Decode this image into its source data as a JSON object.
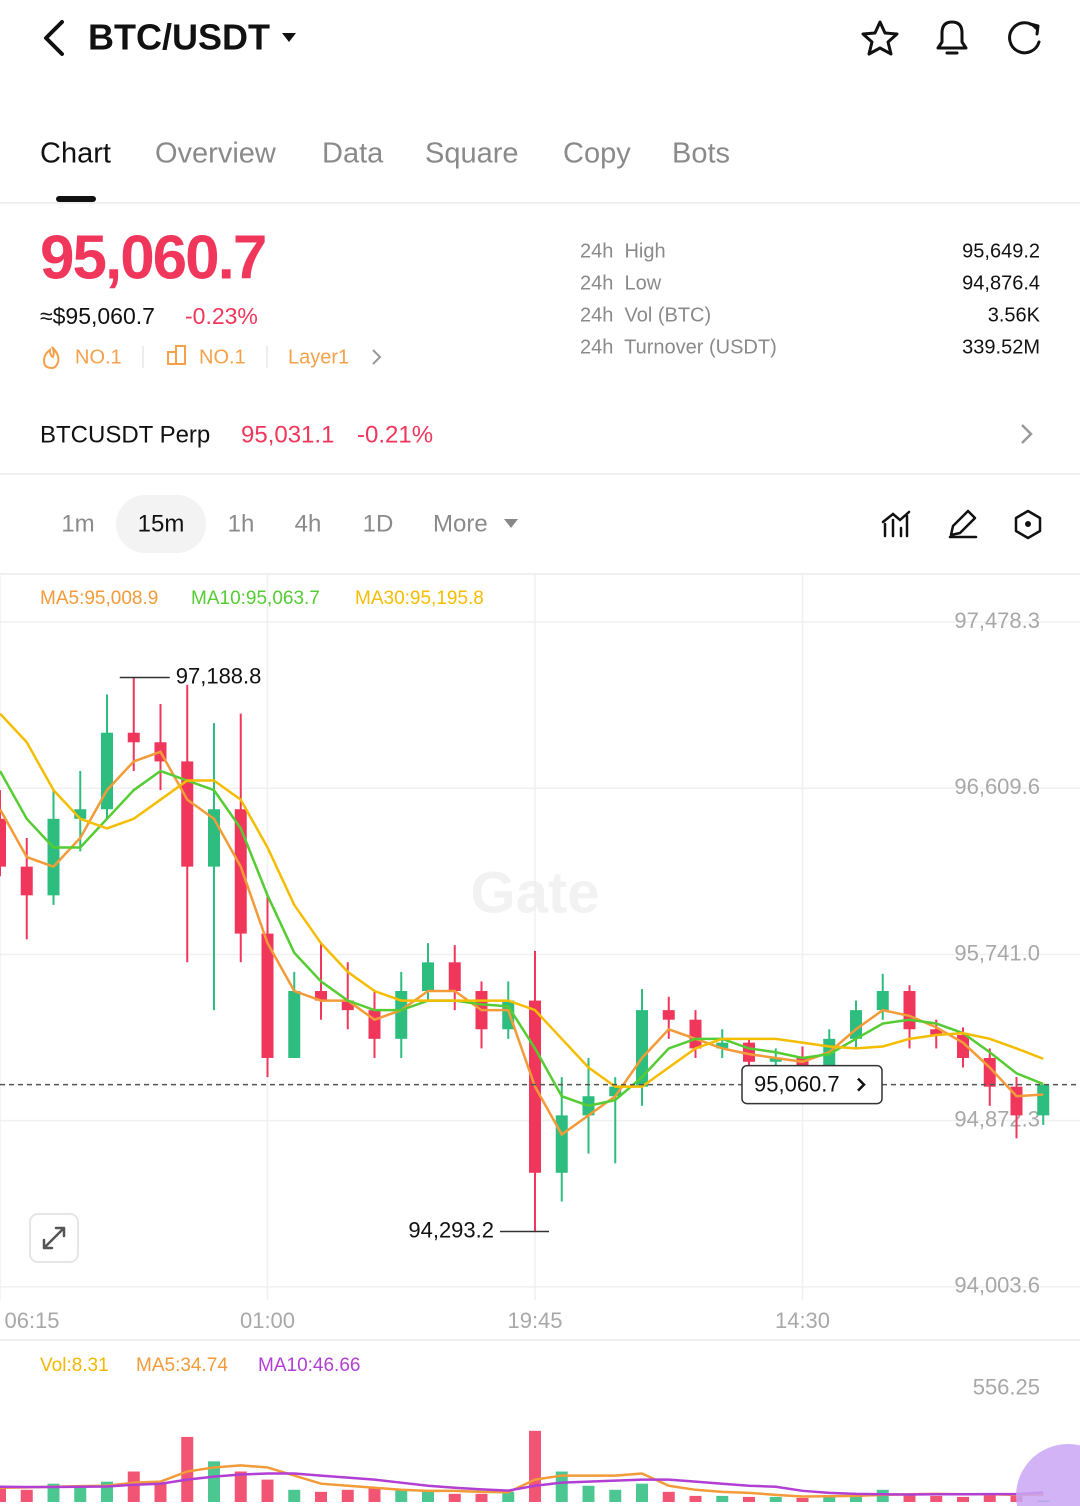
{
  "header": {
    "pair": "BTC/USDT"
  },
  "tabs": [
    "Chart",
    "Overview",
    "Data",
    "Square",
    "Copy",
    "Bots"
  ],
  "ticker": {
    "price": "95,060.7",
    "usd": "≈$95,060.7",
    "change": "-0.23%",
    "tags": [
      "NO.1",
      "NO.1",
      "Layer1"
    ],
    "stats": [
      {
        "label": "24h  High",
        "value": "95,649.2"
      },
      {
        "label": "24h  Low",
        "value": "94,876.4"
      },
      {
        "label": "24h  Vol (BTC)",
        "value": "3.56K"
      },
      {
        "label": "24h  Turnover (USDT)",
        "value": "339.52M"
      }
    ]
  },
  "perp": {
    "name": "BTCUSDT Perp",
    "price": "95,031.1",
    "change": "-0.21%"
  },
  "intervals": [
    "1m",
    "15m",
    "1h",
    "4h",
    "1D",
    "More"
  ],
  "watermark": "Gate",
  "chart_data": [
    {
      "type": "candlestick",
      "categories": [
        "06:15",
        null,
        null,
        null,
        null,
        null,
        null,
        null,
        null,
        null,
        "01:00",
        null,
        null,
        null,
        null,
        null,
        null,
        null,
        null,
        null,
        "19:45",
        null,
        null,
        null,
        null,
        null,
        null,
        null,
        null,
        null,
        "14:30",
        null,
        null,
        null,
        null,
        null,
        null,
        null,
        null,
        null
      ],
      "open": [
        96450,
        96200,
        96050,
        96450,
        96500,
        96900,
        96850,
        96750,
        96200,
        96500,
        95850,
        95200,
        95550,
        95500,
        95450,
        95300,
        95550,
        95700,
        95550,
        95350,
        95500,
        94600,
        94900,
        95000,
        95050,
        95450,
        95400,
        95250,
        95280,
        95180,
        95200,
        95150,
        95300,
        95450,
        95550,
        95350,
        95320,
        95200,
        95050,
        94900
      ],
      "high": [
        96600,
        96350,
        96600,
        96700,
        97100,
        97188.8,
        97050,
        97150,
        96950,
        97000,
        96050,
        95650,
        95800,
        95700,
        95550,
        95650,
        95800,
        95790,
        95600,
        95600,
        95760,
        95100,
        95200,
        95100,
        95560,
        95520,
        95450,
        95350,
        95300,
        95250,
        95260,
        95350,
        95500,
        95640,
        95580,
        95400,
        95360,
        95250,
        95100,
        95060.7
      ],
      "low": [
        96150,
        95820,
        96000,
        96280,
        96450,
        96700,
        96600,
        95700,
        95450,
        95700,
        95100,
        95200,
        95400,
        95350,
        95200,
        95200,
        95500,
        95450,
        95250,
        95300,
        94293.2,
        94450,
        94700,
        94650,
        94950,
        95300,
        95200,
        95200,
        95120,
        95080,
        95100,
        95120,
        95250,
        95400,
        95250,
        95250,
        95150,
        94950,
        94780,
        94850
      ],
      "close": [
        96200,
        96050,
        96450,
        96500,
        96900,
        96850,
        96750,
        96200,
        96500,
        95850,
        95200,
        95550,
        95500,
        95450,
        95300,
        95550,
        95700,
        95550,
        95350,
        95500,
        94600,
        94900,
        95000,
        95050,
        95450,
        95400,
        95250,
        95280,
        95180,
        95200,
        95150,
        95300,
        95450,
        95550,
        95350,
        95320,
        95200,
        95050,
        94900,
        95060.7
      ],
      "up_color": "#2dbd7f",
      "down_color": "#f0365b",
      "series": [
        {
          "name": "MA5:95,008.9",
          "color": "#f29b38",
          "values": [
            96500,
            96250,
            96200,
            96350,
            96600,
            96750,
            96800,
            96550,
            96450,
            96200,
            95800,
            95550,
            95500,
            95500,
            95400,
            95450,
            95550,
            95550,
            95450,
            95450,
            95050,
            94800,
            94900,
            95000,
            95200,
            95350,
            95300,
            95250,
            95220,
            95200,
            95180,
            95230,
            95350,
            95450,
            95420,
            95360,
            95280,
            95150,
            95000,
            95008.9
          ]
        },
        {
          "name": "MA10:95,063.7",
          "color": "#55cc33",
          "values": [
            96700,
            96450,
            96300,
            96300,
            96450,
            96600,
            96700,
            96650,
            96600,
            96400,
            96050,
            95750,
            95600,
            95500,
            95450,
            95450,
            95500,
            95500,
            95480,
            95470,
            95250,
            95000,
            94950,
            94980,
            95100,
            95250,
            95300,
            95300,
            95250,
            95230,
            95200,
            95220,
            95300,
            95380,
            95400,
            95380,
            95330,
            95230,
            95120,
            95063.7
          ]
        },
        {
          "name": "MA30:95,195.8",
          "color": "#f5bd00",
          "values": [
            97000,
            96850,
            96600,
            96450,
            96400,
            96450,
            96550,
            96650,
            96650,
            96550,
            96300,
            96000,
            95800,
            95650,
            95550,
            95500,
            95500,
            95500,
            95500,
            95500,
            95450,
            95300,
            95150,
            95050,
            95050,
            95150,
            95250,
            95300,
            95300,
            95300,
            95280,
            95260,
            95250,
            95260,
            95300,
            95320,
            95330,
            95300,
            95250,
            95195.8
          ]
        }
      ],
      "ylim": [
        93935,
        97672
      ],
      "yticks": [
        {
          "value": 97478.3,
          "label": "97,478.3"
        },
        {
          "value": 96609.6,
          "label": "96,609.6"
        },
        {
          "value": 95741.0,
          "label": "95,741.0"
        },
        {
          "value": 94872.3,
          "label": "94,872.3"
        },
        {
          "value": 94003.6,
          "label": "94,003.6"
        }
      ],
      "max_label": {
        "value": 97188.8,
        "label": "97,188.8"
      },
      "min_label": {
        "value": 94293.2,
        "label": "94,293.2"
      },
      "last_price": {
        "value": 95060.7,
        "label": "95,060.7"
      },
      "grid": true
    },
    {
      "type": "bar",
      "series": [
        {
          "name": "Vol:8.31",
          "color": "#f5b800",
          "values": [
            80,
            60,
            90,
            70,
            100,
            150,
            90,
            320,
            200,
            150,
            110,
            60,
            50,
            60,
            70,
            60,
            50,
            40,
            40,
            50,
            350,
            150,
            80,
            60,
            90,
            50,
            30,
            30,
            25,
            25,
            20,
            30,
            40,
            60,
            40,
            30,
            25,
            35,
            40,
            8.31
          ]
        },
        {
          "name": "MA5:34.74",
          "color": "#f29b38",
          "values": [
            70,
            72,
            75,
            78,
            80,
            95,
            100,
            150,
            170,
            180,
            170,
            130,
            90,
            80,
            70,
            60,
            55,
            55,
            50,
            48,
            110,
            130,
            130,
            130,
            140,
            80,
            60,
            50,
            45,
            35,
            27,
            28,
            30,
            35,
            38,
            40,
            38,
            38,
            35,
            34.74
          ]
        },
        {
          "name": "MA10:46.66",
          "color": "#b23fd3",
          "values": [
            75,
            74,
            74,
            75,
            76,
            85,
            90,
            110,
            125,
            135,
            140,
            140,
            130,
            120,
            110,
            95,
            80,
            70,
            62,
            56,
            80,
            95,
            100,
            105,
            110,
            110,
            100,
            90,
            80,
            75,
            55,
            45,
            40,
            38,
            37,
            38,
            38,
            39,
            39,
            46.66
          ]
        }
      ],
      "ylim": [
        0,
        600
      ],
      "yticks": [
        556.25
      ]
    }
  ]
}
